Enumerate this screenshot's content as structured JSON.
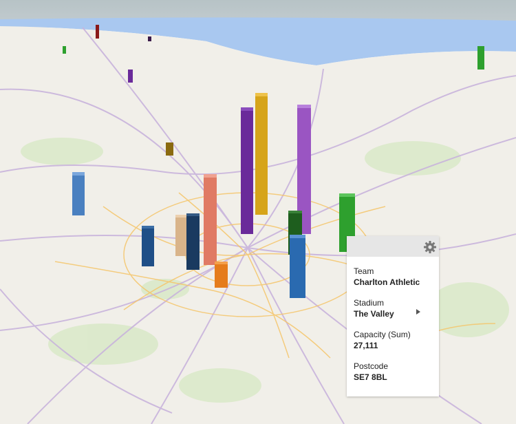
{
  "tooltip": {
    "fields": [
      {
        "label": "Team",
        "value": "Charlton Athletic"
      },
      {
        "label": "Stadium",
        "value": "The Valley"
      },
      {
        "label": "Capacity (Sum)",
        "value": "27,111"
      },
      {
        "label": "Postcode",
        "value": "SE7 8BL"
      }
    ]
  }
}
